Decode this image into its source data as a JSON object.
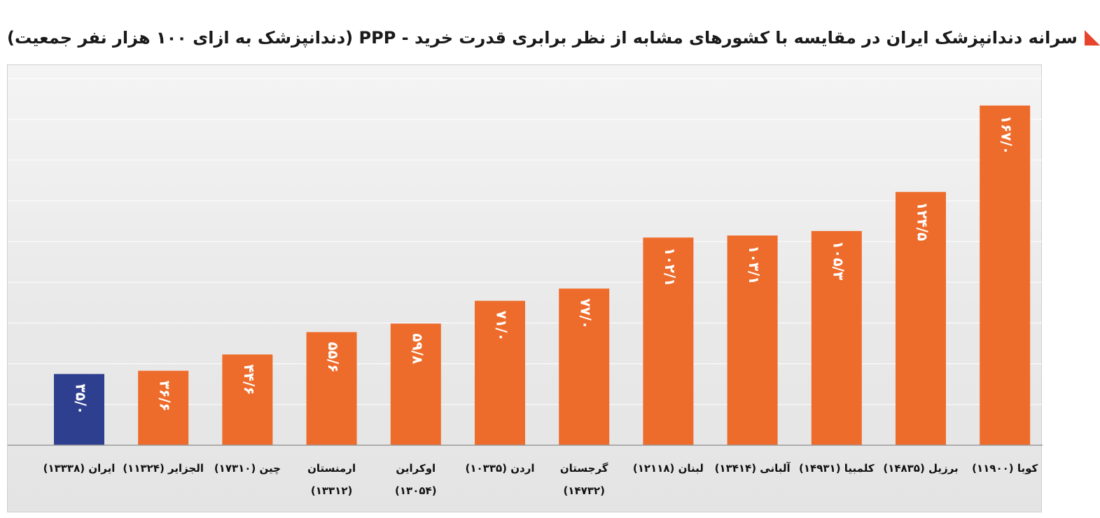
{
  "chart_data": {
    "type": "bar",
    "title": "سرانه دندانپزشک ایران در مقایسه با کشورهای مشابه از نظر برابری قدرت خرید - PPP (دندانپزشک به ازای ۱۰۰ هزار نفر جمعیت)",
    "xlabel": "",
    "ylabel": "",
    "ylim": [
      0,
      180
    ],
    "grid": true,
    "legend": "none",
    "highlight_color": "#2e3f8f",
    "bar_color": "#ee6c2b",
    "value_label_color": "#ffffff",
    "categories": [
      "ایران (۱۳۳۳۸)",
      "الجزایر (۱۱۳۲۴)",
      "چین (۱۷۳۱۰)",
      "ارمنستان (۱۳۳۱۲)",
      "اوکراین (۱۳۰۵۴)",
      "اردن (۱۰۳۳۵)",
      "گرجستان (۱۴۷۳۲)",
      "لبنان (۱۲۱۱۸)",
      "آلبانی (۱۳۴۱۴)",
      "کلمبیا (۱۴۹۳۱)",
      "برزیل (۱۴۸۳۵)",
      "کوبا (۱۱۹۰۰)"
    ],
    "category_lines": [
      [
        "ایران (۱۳۳۳۸)"
      ],
      [
        "الجزایر (۱۱۳۲۴)"
      ],
      [
        "چین (۱۷۳۱۰)"
      ],
      [
        "ارمنستان",
        "(۱۳۳۱۲)"
      ],
      [
        "اوکراین",
        "(۱۳۰۵۴)"
      ],
      [
        "اردن (۱۰۳۳۵)"
      ],
      [
        "گرجستان",
        "(۱۴۷۳۲)"
      ],
      [
        "لبنان (۱۲۱۱۸)"
      ],
      [
        "آلبانی (۱۳۴۱۴)"
      ],
      [
        "کلمبیا (۱۴۹۳۱)"
      ],
      [
        "برزیل (۱۴۸۳۵)"
      ],
      [
        "کوبا (۱۱۹۰۰)"
      ]
    ],
    "values": [
      35.0,
      36.6,
      44.6,
      55.6,
      59.8,
      71.0,
      77.0,
      102.1,
      103.1,
      105.3,
      124.5,
      167.0
    ],
    "value_labels": [
      "۳۵/۰",
      "۳۶/۶",
      "۴۴/۶",
      "۵۵/۶",
      "۵۹/۸",
      "۷۱/۰",
      "۷۷/۰",
      "۱۰۲/۱",
      "۱۰۳/۱",
      "۱۰۵/۳",
      "۱۲۴/۵",
      "۱۶۷/۰"
    ],
    "highlight_index": 0
  }
}
